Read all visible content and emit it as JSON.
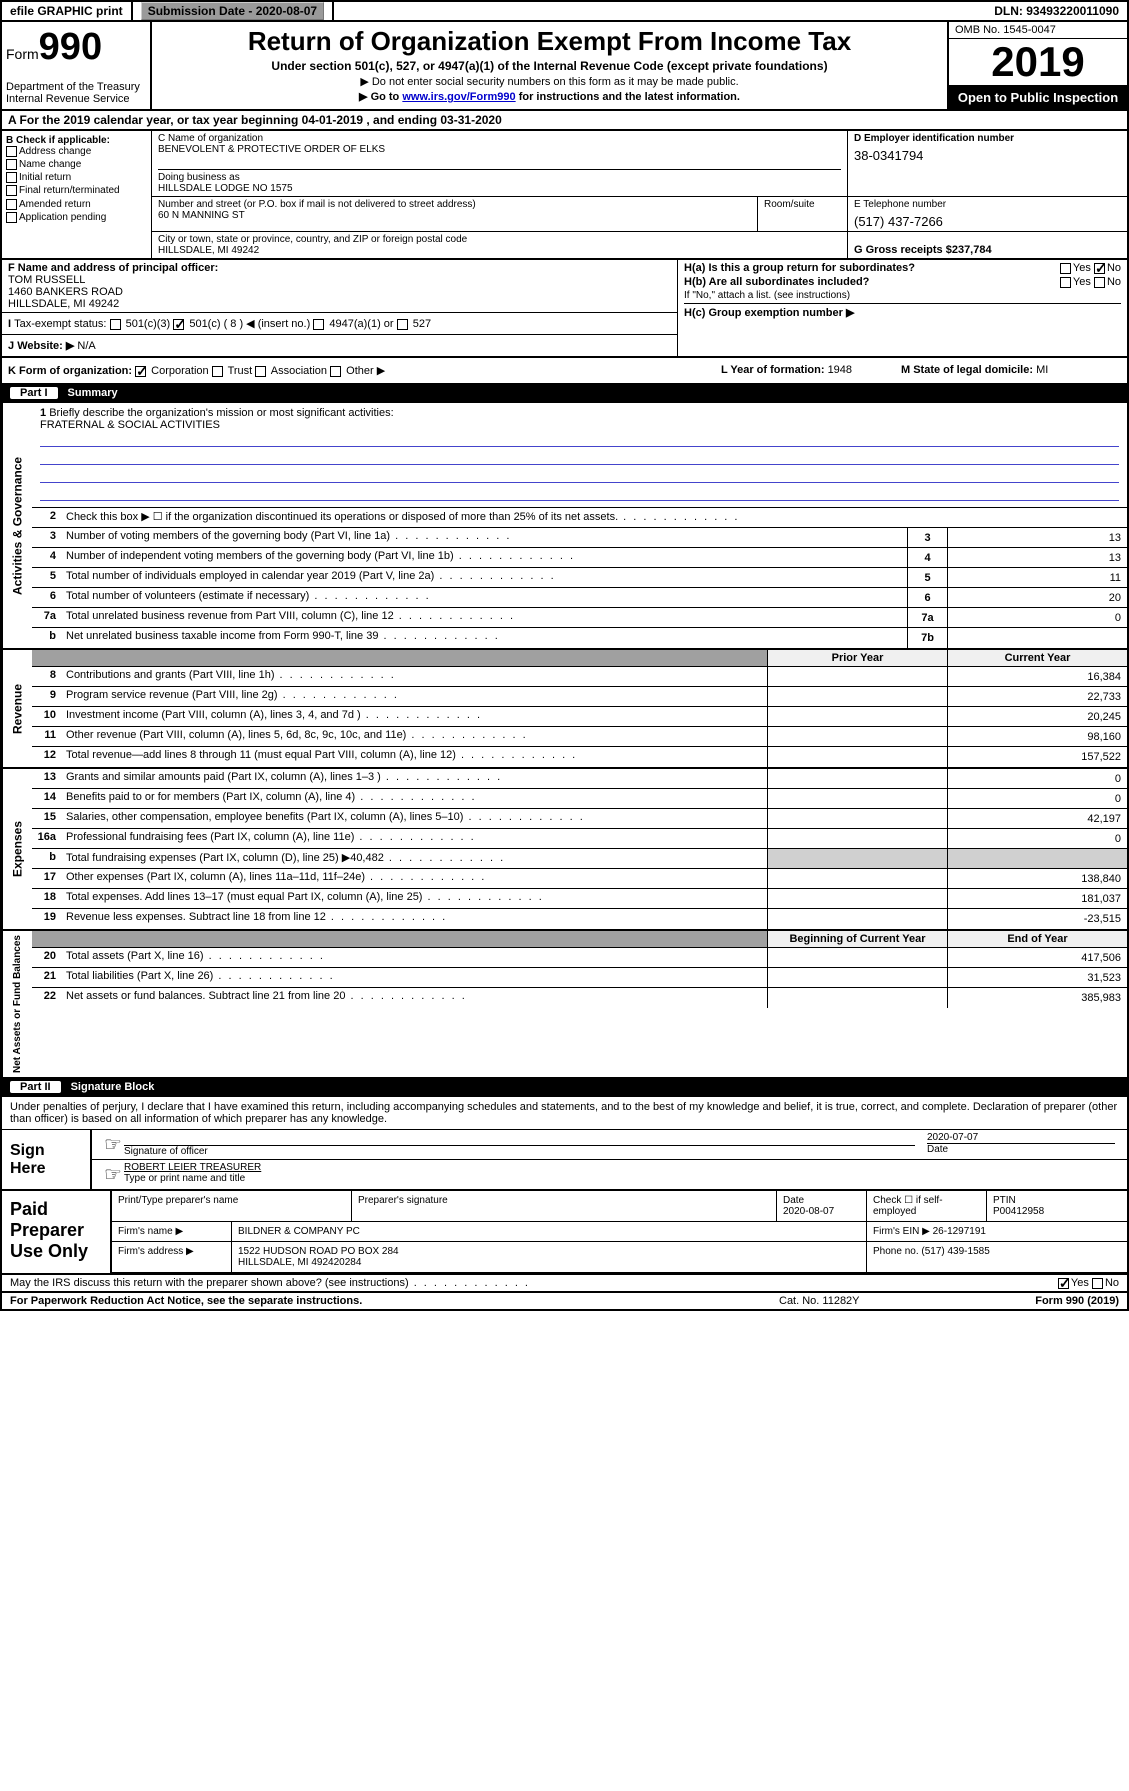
{
  "topbar": {
    "efile_label": "efile GRAPHIC print",
    "submission_label": "Submission Date - 2020-08-07",
    "dln": "DLN: 93493220011090"
  },
  "header": {
    "form_prefix": "Form",
    "form_number": "990",
    "dept": "Department of the Treasury\nInternal Revenue Service",
    "title": "Return of Organization Exempt From Income Tax",
    "subtitle": "Under section 501(c), 527, or 4947(a)(1) of the Internal Revenue Code (except private foundations)",
    "note1": "▶ Do not enter social security numbers on this form as it may be made public.",
    "note2_pre": "▶ Go to ",
    "note2_link": "www.irs.gov/Form990",
    "note2_post": " for instructions and the latest information.",
    "omb": "OMB No. 1545-0047",
    "year": "2019",
    "open_public": "Open to Public Inspection"
  },
  "lineA": {
    "text": "A For the 2019 calendar year, or tax year beginning 04-01-2019    , and ending 03-31-2020"
  },
  "colB": {
    "header": "B Check if applicable:",
    "items": [
      "Address change",
      "Name change",
      "Initial return",
      "Final return/terminated",
      "Amended return",
      "Application pending"
    ]
  },
  "colC": {
    "name_label": "C Name of organization",
    "name": "BENEVOLENT & PROTECTIVE ORDER OF ELKS",
    "dba_label": "Doing business as",
    "dba": "HILLSDALE LODGE NO 1575",
    "addr_label": "Number and street (or P.O. box if mail is not delivered to street address)",
    "addr": "60 N MANNING ST",
    "room_label": "Room/suite",
    "city_label": "City or town, state or province, country, and ZIP or foreign postal code",
    "city": "HILLSDALE, MI  49242"
  },
  "colD": {
    "ein_label": "D Employer identification number",
    "ein": "38-0341794",
    "phone_label": "E Telephone number",
    "phone": "(517) 437-7266",
    "gross_label": "G Gross receipts $ ",
    "gross": "237,784"
  },
  "blockF": {
    "label": "F  Name and address of principal officer:",
    "name": "TOM RUSSELL",
    "addr1": "1460 BANKERS ROAD",
    "addr2": "HILLSDALE, MI  49242"
  },
  "blockI": {
    "label": "Tax-exempt status:",
    "opts": [
      "501(c)(3)",
      "501(c) ( 8 ) ◀ (insert no.)",
      "4947(a)(1) or",
      "527"
    ],
    "checked_idx": 1
  },
  "blockJ": {
    "label": "Website: ▶",
    "value": "N/A"
  },
  "blockH": {
    "ha": "H(a)  Is this a group return for subordinates?",
    "ha_yes": "Yes",
    "ha_no": "No",
    "ha_checked": "no",
    "hb": "H(b)  Are all subordinates included?",
    "hb_note": "If \"No,\" attach a list. (see instructions)",
    "hc": "H(c)  Group exemption number ▶"
  },
  "lineK": {
    "label": "K Form of organization:",
    "opts": [
      "Corporation",
      "Trust",
      "Association",
      "Other ▶"
    ],
    "checked_idx": 0,
    "L_label": "L Year of formation: ",
    "L_val": "1948",
    "M_label": "M State of legal domicile: ",
    "M_val": "MI"
  },
  "partI": {
    "label": "Part I",
    "title": "Summary"
  },
  "mission": {
    "num": "1",
    "label": "Briefly describe the organization's mission or most significant activities:",
    "text": "FRATERNAL & SOCIAL ACTIVITIES"
  },
  "governance_lines": [
    {
      "num": "2",
      "text": "Check this box ▶ ☐  if the organization discontinued its operations or disposed of more than 25% of its net assets.",
      "box": "",
      "val": ""
    },
    {
      "num": "3",
      "text": "Number of voting members of the governing body (Part VI, line 1a)",
      "box": "3",
      "val": "13"
    },
    {
      "num": "4",
      "text": "Number of independent voting members of the governing body (Part VI, line 1b)",
      "box": "4",
      "val": "13"
    },
    {
      "num": "5",
      "text": "Total number of individuals employed in calendar year 2019 (Part V, line 2a)",
      "box": "5",
      "val": "11"
    },
    {
      "num": "6",
      "text": "Total number of volunteers (estimate if necessary)",
      "box": "6",
      "val": "20"
    },
    {
      "num": "7a",
      "text": "Total unrelated business revenue from Part VIII, column (C), line 12",
      "box": "7a",
      "val": "0"
    },
    {
      "num": "b",
      "text": "Net unrelated business taxable income from Form 990-T, line 39",
      "box": "7b",
      "val": ""
    }
  ],
  "rev_header": {
    "prior": "Prior Year",
    "current": "Current Year"
  },
  "revenue_lines": [
    {
      "num": "8",
      "text": "Contributions and grants (Part VIII, line 1h)",
      "prior": "",
      "curr": "16,384"
    },
    {
      "num": "9",
      "text": "Program service revenue (Part VIII, line 2g)",
      "prior": "",
      "curr": "22,733"
    },
    {
      "num": "10",
      "text": "Investment income (Part VIII, column (A), lines 3, 4, and 7d )",
      "prior": "",
      "curr": "20,245"
    },
    {
      "num": "11",
      "text": "Other revenue (Part VIII, column (A), lines 5, 6d, 8c, 9c, 10c, and 11e)",
      "prior": "",
      "curr": "98,160"
    },
    {
      "num": "12",
      "text": "Total revenue—add lines 8 through 11 (must equal Part VIII, column (A), line 12)",
      "prior": "",
      "curr": "157,522"
    }
  ],
  "expense_lines": [
    {
      "num": "13",
      "text": "Grants and similar amounts paid (Part IX, column (A), lines 1–3 )",
      "prior": "",
      "curr": "0"
    },
    {
      "num": "14",
      "text": "Benefits paid to or for members (Part IX, column (A), line 4)",
      "prior": "",
      "curr": "0"
    },
    {
      "num": "15",
      "text": "Salaries, other compensation, employee benefits (Part IX, column (A), lines 5–10)",
      "prior": "",
      "curr": "42,197"
    },
    {
      "num": "16a",
      "text": "Professional fundraising fees (Part IX, column (A), line 11e)",
      "prior": "",
      "curr": "0"
    },
    {
      "num": "b",
      "text": "Total fundraising expenses (Part IX, column (D), line 25) ▶40,482",
      "prior": "shaded",
      "curr": "shaded"
    },
    {
      "num": "17",
      "text": "Other expenses (Part IX, column (A), lines 11a–11d, 11f–24e)",
      "prior": "",
      "curr": "138,840"
    },
    {
      "num": "18",
      "text": "Total expenses. Add lines 13–17 (must equal Part IX, column (A), line 25)",
      "prior": "",
      "curr": "181,037"
    },
    {
      "num": "19",
      "text": "Revenue less expenses. Subtract line 18 from line 12",
      "prior": "",
      "curr": "-23,515"
    }
  ],
  "net_header": {
    "beg": "Beginning of Current Year",
    "end": "End of Year"
  },
  "net_lines": [
    {
      "num": "20",
      "text": "Total assets (Part X, line 16)",
      "prior": "",
      "curr": "417,506"
    },
    {
      "num": "21",
      "text": "Total liabilities (Part X, line 26)",
      "prior": "",
      "curr": "31,523"
    },
    {
      "num": "22",
      "text": "Net assets or fund balances. Subtract line 21 from line 20",
      "prior": "",
      "curr": "385,983"
    }
  ],
  "side_labels": {
    "gov": "Activities & Governance",
    "rev": "Revenue",
    "exp": "Expenses",
    "net": "Net Assets or Fund Balances"
  },
  "partII": {
    "label": "Part II",
    "title": "Signature Block"
  },
  "declaration": "Under penalties of perjury, I declare that I have examined this return, including accompanying schedules and statements, and to the best of my knowledge and belief, it is true, correct, and complete. Declaration of preparer (other than officer) is based on all information of which preparer has any knowledge.",
  "sign": {
    "label": "Sign Here",
    "sig_officer": "Signature of officer",
    "date": "2020-07-07",
    "date_label": "Date",
    "name": "ROBERT LEIER  TREASURER",
    "name_label": "Type or print name and title"
  },
  "paid": {
    "label": "Paid Preparer Use Only",
    "print_label": "Print/Type preparer's name",
    "sig_label": "Preparer's signature",
    "date_label": "Date",
    "date": "2020-08-07",
    "check_label": "Check ☐ if self-employed",
    "ptin_label": "PTIN",
    "ptin": "P00412958",
    "firm_name_label": "Firm's name    ▶",
    "firm_name": "BILDNER & COMPANY PC",
    "firm_ein_label": "Firm's EIN ▶",
    "firm_ein": "26-1297191",
    "firm_addr_label": "Firm's address ▶",
    "firm_addr1": "1522 HUDSON ROAD PO BOX 284",
    "firm_addr2": "HILLSDALE, MI  492420284",
    "phone_label": "Phone no. ",
    "phone": "(517) 439-1585"
  },
  "discuss": {
    "text": "May the IRS discuss this return with the preparer shown above? (see instructions)",
    "yes": "Yes",
    "no": "No",
    "checked": "yes"
  },
  "footer": {
    "notice": "For Paperwork Reduction Act Notice, see the separate instructions.",
    "cat": "Cat. No. 11282Y",
    "form": "Form 990 (2019)"
  },
  "colors": {
    "border": "#000000",
    "shaded": "#d0d0d0",
    "link": "#0000cc",
    "btn_bg": "#9a9a9a"
  }
}
